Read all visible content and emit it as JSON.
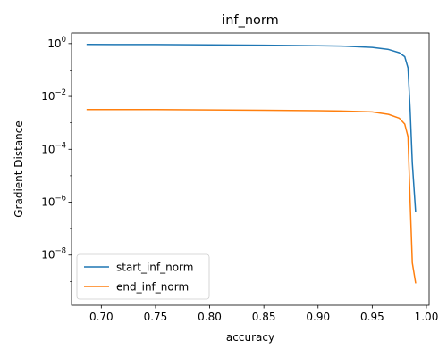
{
  "chart_data": {
    "type": "line",
    "title": "inf_norm",
    "xlabel": "accuracy",
    "ylabel": "Gradient Distance",
    "xlim": [
      0.6725,
      1.0025
    ],
    "ylim_log10": [
      -9.9,
      0.4
    ],
    "y_scale": "log",
    "grid": false,
    "legend_position": "lower-left",
    "x_ticks": [
      {
        "value": 0.7,
        "label": "0.70"
      },
      {
        "value": 0.75,
        "label": "0.75"
      },
      {
        "value": 0.8,
        "label": "0.80"
      },
      {
        "value": 0.85,
        "label": "0.85"
      },
      {
        "value": 0.9,
        "label": "0.90"
      },
      {
        "value": 0.95,
        "label": "0.95"
      },
      {
        "value": 1.0,
        "label": "1.00"
      }
    ],
    "y_ticks": [
      {
        "exp": 0,
        "base": "10",
        "sup": "0"
      },
      {
        "exp": -2,
        "base": "10",
        "sup": "−2"
      },
      {
        "exp": -4,
        "base": "10",
        "sup": "−4"
      },
      {
        "exp": -6,
        "base": "10",
        "sup": "−6"
      },
      {
        "exp": -8,
        "base": "10",
        "sup": "−8"
      }
    ],
    "series": [
      {
        "name": "start_inf_norm",
        "color": "#1f77b4",
        "x": [
          0.687,
          0.75,
          0.8,
          0.85,
          0.9,
          0.925,
          0.95,
          0.965,
          0.975,
          0.98,
          0.983,
          0.985,
          0.987,
          0.99
        ],
        "y": [
          0.93,
          0.92,
          0.9,
          0.87,
          0.83,
          0.8,
          0.72,
          0.6,
          0.45,
          0.32,
          0.12,
          0.003,
          3e-05,
          4.5e-07
        ]
      },
      {
        "name": "end_inf_norm",
        "color": "#ff7f0e",
        "x": [
          0.687,
          0.75,
          0.8,
          0.85,
          0.9,
          0.925,
          0.95,
          0.965,
          0.975,
          0.98,
          0.983,
          0.985,
          0.987,
          0.99
        ],
        "y": [
          0.0032,
          0.0032,
          0.0031,
          0.003,
          0.0029,
          0.0028,
          0.0026,
          0.0021,
          0.0015,
          0.0009,
          0.0003,
          1e-06,
          5e-09,
          9e-10
        ]
      }
    ]
  }
}
